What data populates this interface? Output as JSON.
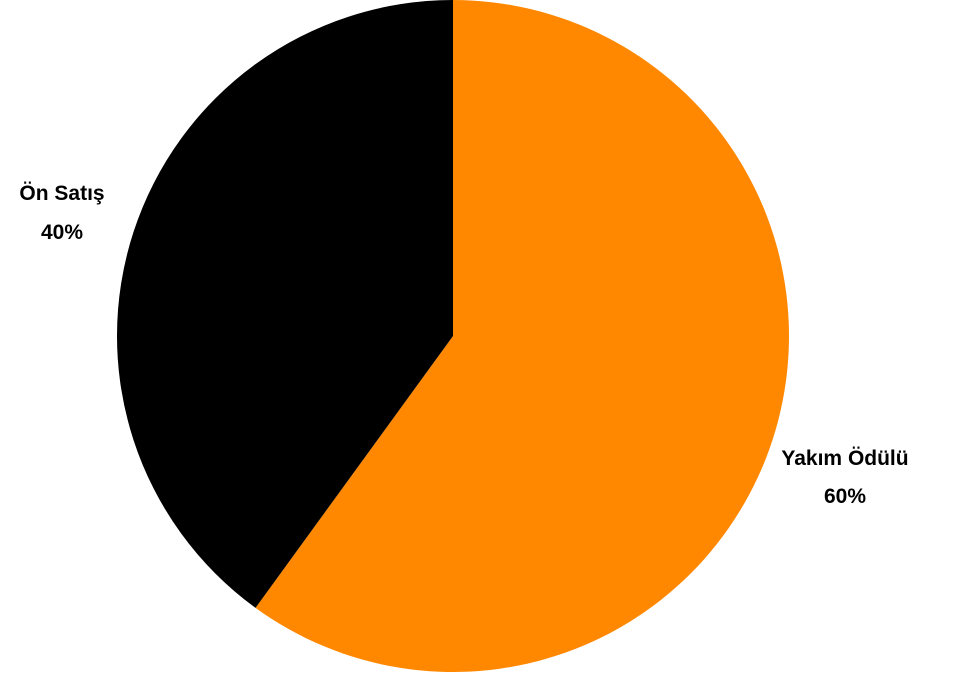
{
  "chart_data": {
    "type": "pie",
    "title": "",
    "slices": [
      {
        "label": "Yakım Ödülü",
        "value": 60,
        "value_label": "60%",
        "color": "#ff8800"
      },
      {
        "label": "Ön Satış",
        "value": 40,
        "value_label": "40%",
        "color": "#000000"
      }
    ],
    "start_angle": "12 o'clock",
    "direction": "clockwise",
    "legend": "none",
    "labels": "outside"
  }
}
